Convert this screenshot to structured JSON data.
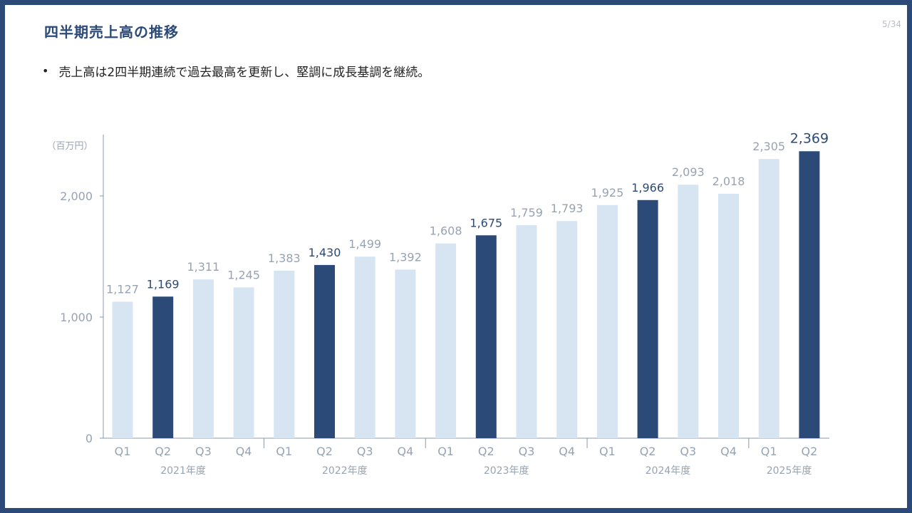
{
  "header": {
    "title": "四半期売上高の推移",
    "page": "5/34"
  },
  "bullets": [
    "売上高は2四半期連続で過去最高を更新し、堅調に成長基調を継続。"
  ],
  "colors": {
    "frame": "#2b4a78",
    "title": "#2b4a78",
    "highlight_bar": "#2b4a78",
    "normal_bar": "#d7e5f3",
    "label_normal": "#97a3b3",
    "label_highlight": "#2b4a78",
    "axis": "#8c99aa"
  },
  "chart_data": {
    "type": "bar",
    "unit_label": "（百万円）",
    "categories": [
      "Q1",
      "Q2",
      "Q3",
      "Q4",
      "Q1",
      "Q2",
      "Q3",
      "Q4",
      "Q1",
      "Q2",
      "Q3",
      "Q4",
      "Q1",
      "Q2",
      "Q3",
      "Q4",
      "Q1",
      "Q2"
    ],
    "groups": [
      "2021年度",
      "2022年度",
      "2023年度",
      "2024年度",
      "2025年度"
    ],
    "group_of": [
      0,
      0,
      0,
      0,
      1,
      1,
      1,
      1,
      2,
      2,
      2,
      2,
      3,
      3,
      3,
      3,
      4,
      4
    ],
    "values": [
      1127,
      1169,
      1311,
      1245,
      1383,
      1430,
      1499,
      1392,
      1608,
      1675,
      1759,
      1793,
      1925,
      1966,
      2093,
      2018,
      2305,
      2369
    ],
    "value_labels": [
      "1,127",
      "1,169",
      "1,311",
      "1,245",
      "1,383",
      "1,430",
      "1,499",
      "1,392",
      "1,608",
      "1,675",
      "1,759",
      "1,793",
      "1,925",
      "1,966",
      "2,093",
      "2,018",
      "2,305",
      "2,369"
    ],
    "highlighted": [
      1,
      5,
      9,
      13,
      17
    ],
    "yticks": [
      0,
      1000,
      2000
    ],
    "ytick_labels": [
      "0",
      "1,000",
      "2,000"
    ],
    "ylim": [
      0,
      2500
    ]
  }
}
